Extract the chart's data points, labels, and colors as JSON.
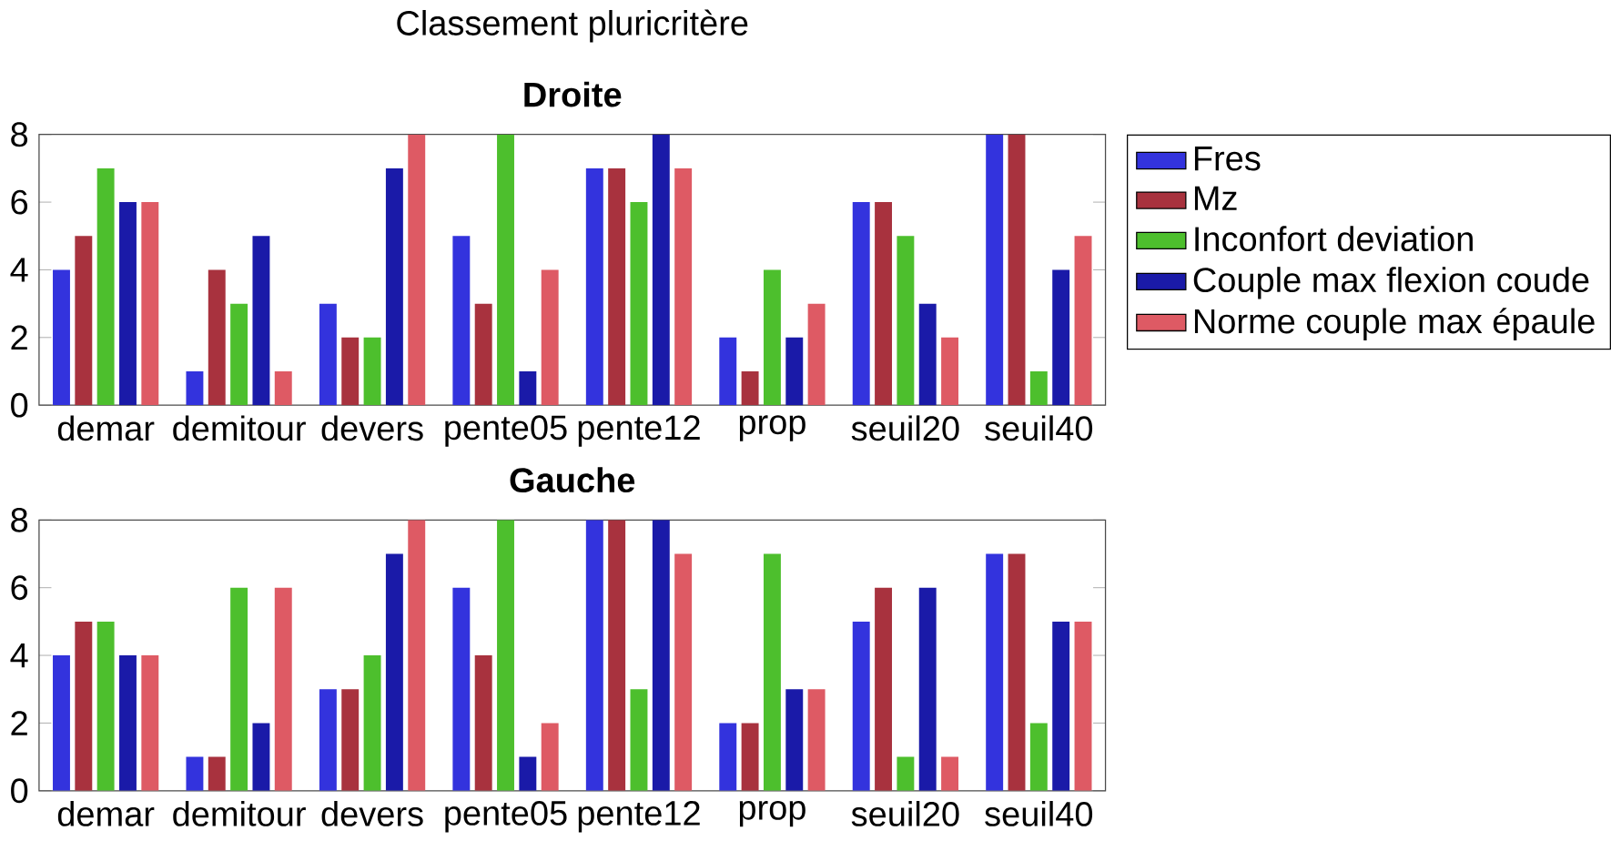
{
  "chart_data": [
    {
      "type": "bar",
      "title": "Classement pluricritère",
      "subtitle": "Droite",
      "categories": [
        "demar",
        "demitour",
        "devers",
        "pente05",
        "pente12",
        "prop",
        "seuil20",
        "seuil40"
      ],
      "series": [
        {
          "name": "Fres",
          "color": "#3333dd",
          "values": [
            4,
            1,
            3,
            5,
            7,
            2,
            6,
            8
          ]
        },
        {
          "name": "Mz",
          "color": "#a8323e",
          "values": [
            5,
            4,
            2,
            3,
            7,
            1,
            6,
            8
          ]
        },
        {
          "name": "Inconfort deviation",
          "color": "#4dbf2d",
          "values": [
            7,
            3,
            2,
            8,
            6,
            4,
            5,
            1
          ]
        },
        {
          "name": "Couple max flexion coude",
          "color": "#1a1aa8",
          "values": [
            6,
            5,
            7,
            1,
            8,
            2,
            3,
            4
          ]
        },
        {
          "name": "Norme couple max épaule",
          "color": "#de5a64",
          "values": [
            6,
            1,
            8,
            4,
            7,
            3,
            2,
            5
          ]
        }
      ],
      "ylim": [
        0,
        8
      ],
      "yticks": [
        0,
        2,
        4,
        6,
        8
      ],
      "legend": "top right"
    },
    {
      "type": "bar",
      "title": "Gauche",
      "categories": [
        "demar",
        "demitour",
        "devers",
        "pente05",
        "pente12",
        "prop",
        "seuil20",
        "seuil40"
      ],
      "series": [
        {
          "color": "#3333dd",
          "values": [
            4,
            1,
            3,
            6,
            8,
            2,
            5,
            7
          ]
        },
        {
          "color": "#a8323e",
          "values": [
            5,
            1,
            3,
            4,
            8,
            2,
            6,
            7
          ]
        },
        {
          "color": "#4dbf2d",
          "values": [
            5,
            6,
            4,
            8,
            3,
            7,
            1,
            2
          ]
        },
        {
          "color": "#1a1aa8",
          "values": [
            4,
            2,
            7,
            1,
            8,
            3,
            6,
            5
          ]
        },
        {
          "color": "#de5a64",
          "values": [
            4,
            6,
            8,
            2,
            7,
            3,
            1,
            5
          ]
        }
      ],
      "ylim": [
        0,
        8
      ],
      "yticks": [
        0,
        2,
        4,
        6,
        8
      ]
    }
  ]
}
